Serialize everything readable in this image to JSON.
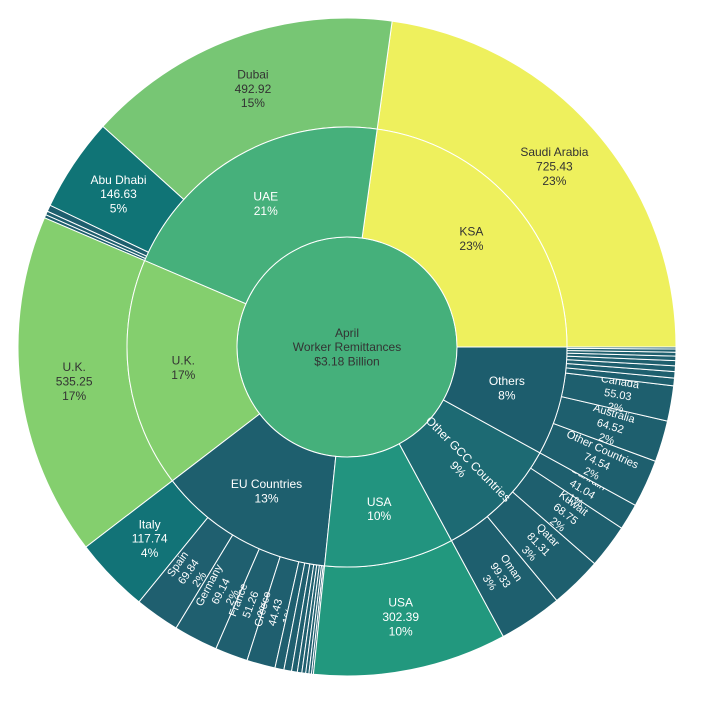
{
  "chart_data": {
    "type": "sunburst",
    "center": {
      "lines": [
        "April",
        "Worker Remittances",
        "$3.18 Billion"
      ],
      "color": "#45b07b"
    },
    "groups": [
      {
        "name": "KSA",
        "share": "23%",
        "color": "#eef05d",
        "children": [
          {
            "name": "Saudi Arabia",
            "value": 725.43,
            "share": "23%",
            "color": "#eef05d"
          }
        ]
      },
      {
        "name": "UAE",
        "share": "21%",
        "color": "#46b07b",
        "children": [
          {
            "name": "Dubai",
            "value": 492.92,
            "share": "15%",
            "color": "#77c674"
          },
          {
            "name": "Abu Dhabi",
            "value": 146.63,
            "share": "5%",
            "color": "#107476"
          },
          {
            "name": null,
            "value": 10,
            "share": null,
            "color": "#1e5f6e"
          },
          {
            "name": null,
            "value": 6,
            "share": null,
            "color": "#1e5f6e"
          },
          {
            "name": null,
            "value": 5,
            "share": null,
            "color": "#1e5f6e"
          }
        ]
      },
      {
        "name": "U.K.",
        "share": "17%",
        "color": "#84cf6e",
        "children": [
          {
            "name": "U.K.",
            "value": 535.25,
            "share": "17%",
            "color": "#84cf6e"
          }
        ]
      },
      {
        "name": "EU Countries",
        "share": "13%",
        "color": "#1e5f6e",
        "children": [
          {
            "name": "Italy",
            "value": 117.74,
            "share": "4%",
            "color": "#127377"
          },
          {
            "name": "Spain",
            "value": 69.84,
            "share": "2%",
            "color": "#1f5f6f"
          },
          {
            "name": "Germany",
            "value": 69.14,
            "share": "2%",
            "color": "#1f5f6f"
          },
          {
            "name": "France",
            "value": 51.26,
            "share": "2%",
            "color": "#1f5f6f"
          },
          {
            "name": "Greece",
            "value": 44.43,
            "share": "1%",
            "color": "#1f5f6f"
          },
          {
            "name": null,
            "value": 14,
            "share": null,
            "color": "#1f5f6f"
          },
          {
            "name": null,
            "value": 12,
            "share": null,
            "color": "#1f5f6f"
          },
          {
            "name": null,
            "value": 9,
            "share": null,
            "color": "#1f5f6f"
          },
          {
            "name": null,
            "value": 7,
            "share": null,
            "color": "#1f5f6f"
          },
          {
            "name": null,
            "value": 6,
            "share": null,
            "color": "#1f5f6f"
          },
          {
            "name": null,
            "value": 5,
            "share": null,
            "color": "#1f5f6f"
          },
          {
            "name": null,
            "value": 4,
            "share": null,
            "color": "#1f5f6f"
          },
          {
            "name": null,
            "value": 3,
            "share": null,
            "color": "#1f5f6f"
          }
        ]
      },
      {
        "name": "USA",
        "share": "10%",
        "color": "#22947f",
        "children": [
          {
            "name": "USA",
            "value": 302.39,
            "share": "10%",
            "color": "#22987e"
          }
        ]
      },
      {
        "name": "Other GCC Countries",
        "share": "9%",
        "color": "#1d6a73",
        "children": [
          {
            "name": "Oman",
            "value": 99.33,
            "share": "3%",
            "color": "#1e5f6e"
          },
          {
            "name": "Qatar",
            "value": 81.31,
            "share": "3%",
            "color": "#1e5f6e"
          },
          {
            "name": "Kuwait",
            "value": 68.75,
            "share": "2%",
            "color": "#1e5f6e"
          },
          {
            "name": "Bahrain",
            "value": 41.04,
            "share": "1%",
            "color": "#1e5f6e"
          }
        ]
      },
      {
        "name": "Others",
        "share": "8%",
        "color": "#1d5d6d",
        "children": [
          {
            "name": "Other Countries",
            "value": 74.54,
            "share": "2%",
            "color": "#1e5f6e"
          },
          {
            "name": "Australia",
            "value": 64.52,
            "share": "2%",
            "color": "#1e5f6e"
          },
          {
            "name": "Canada",
            "value": 55.03,
            "share": "2%",
            "color": "#1e5f6e"
          },
          {
            "name": null,
            "value": 12,
            "share": null,
            "color": "#1e5f6e"
          },
          {
            "name": null,
            "value": 10,
            "share": null,
            "color": "#1e5f6e"
          },
          {
            "name": null,
            "value": 9,
            "share": null,
            "color": "#1e5f6e"
          },
          {
            "name": null,
            "value": 8,
            "share": null,
            "color": "#1e5f6e"
          },
          {
            "name": null,
            "value": 7,
            "share": null,
            "color": "#1e5f6e"
          },
          {
            "name": null,
            "value": 6,
            "share": null,
            "color": "#1e5f6e"
          },
          {
            "name": null,
            "value": 5,
            "share": null,
            "color": "#1e5f6e"
          },
          {
            "name": null,
            "value": 3,
            "share": null,
            "color": "#1e5f6e"
          }
        ]
      }
    ]
  }
}
